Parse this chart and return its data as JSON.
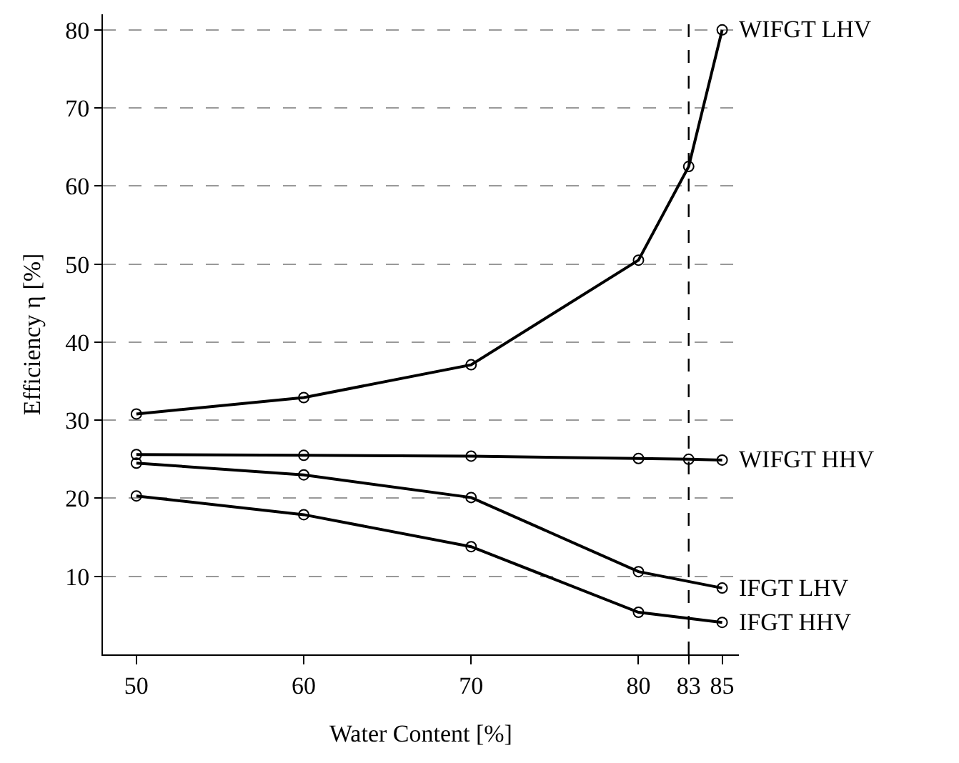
{
  "chart_data": {
    "type": "line",
    "xlabel": "Water Content [%]",
    "ylabel": "Efficiency η [%]",
    "xlim": [
      48,
      86
    ],
    "xticks": [
      50,
      60,
      70,
      80,
      83,
      85
    ],
    "ylim": [
      0,
      82
    ],
    "yticks": [
      10,
      20,
      30,
      40,
      50,
      60,
      70,
      80
    ],
    "grid": "y",
    "legend": false,
    "marker": "circle",
    "line_style": "solid",
    "series": [
      {
        "name": "WIFGT LHV",
        "color": "#000000",
        "x": [
          50,
          60,
          70,
          80,
          83,
          85
        ],
        "values": [
          30.8,
          32.9,
          37.1,
          50.5,
          62.5,
          80
        ]
      },
      {
        "name": "WIFGT HHV",
        "color": "#000000",
        "x": [
          50,
          60,
          70,
          80,
          83,
          85
        ],
        "values": [
          25.6,
          25.5,
          25.4,
          25.1,
          25.0,
          24.9
        ]
      },
      {
        "name": "IFGT LHV",
        "color": "#000000",
        "x": [
          50,
          60,
          70,
          80,
          85
        ],
        "values": [
          24.5,
          23.0,
          20.1,
          10.6,
          8.5
        ]
      },
      {
        "name": "IFGT HHV",
        "color": "#000000",
        "x": [
          50,
          60,
          70,
          80,
          85
        ],
        "values": [
          20.3,
          17.9,
          13.8,
          5.4,
          4.1
        ]
      }
    ],
    "ref_lines": [
      {
        "axis": "x",
        "value": 83,
        "color": "#000000",
        "line_style": "dashed"
      }
    ]
  }
}
